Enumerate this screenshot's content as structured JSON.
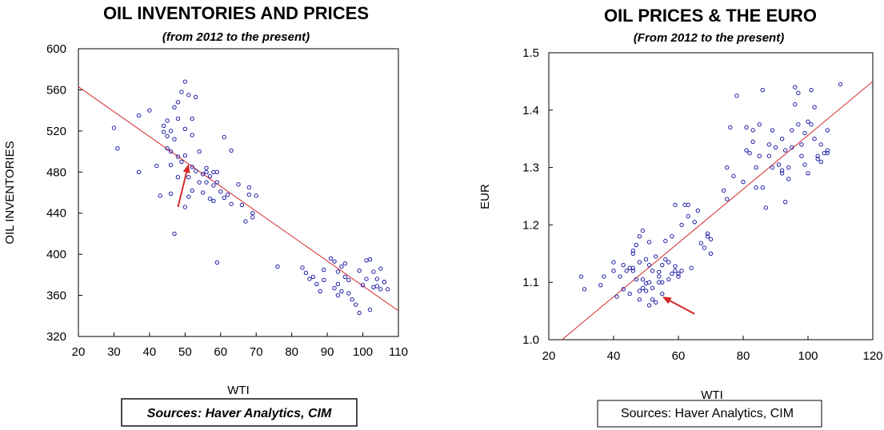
{
  "chart_data": [
    {
      "type": "scatter",
      "title": "OIL INVENTORIES AND PRICES",
      "subtitle": "(from 2012 to the present)",
      "xlabel": "WTI",
      "ylabel": "OIL INVENTORIES",
      "xlim": [
        20,
        110
      ],
      "ylim": [
        320,
        600
      ],
      "xticks": [
        20,
        30,
        40,
        50,
        60,
        70,
        80,
        90,
        100,
        110
      ],
      "yticks": [
        320,
        360,
        400,
        440,
        480,
        520,
        560,
        600
      ],
      "point_color": "#1f1fa8",
      "line_color": "#d42a2a",
      "arrow_color": "#d42a2a",
      "regression": {
        "x": [
          20,
          110
        ],
        "y": [
          563,
          345
        ]
      },
      "arrow": {
        "from": [
          48,
          446
        ],
        "to": [
          51,
          488
        ]
      },
      "grid": false,
      "source": "Sources:  Haver Analytics, CIM",
      "points": [
        [
          30,
          523
        ],
        [
          31,
          503
        ],
        [
          37,
          480
        ],
        [
          37,
          535
        ],
        [
          40,
          540
        ],
        [
          42,
          486
        ],
        [
          43,
          457
        ],
        [
          44,
          519
        ],
        [
          44,
          525
        ],
        [
          45,
          530
        ],
        [
          45,
          503
        ],
        [
          45,
          515
        ],
        [
          46,
          459
        ],
        [
          46,
          500
        ],
        [
          46,
          520
        ],
        [
          46,
          487
        ],
        [
          47,
          543
        ],
        [
          47,
          512
        ],
        [
          47,
          420
        ],
        [
          48,
          475
        ],
        [
          48,
          495
        ],
        [
          48,
          548
        ],
        [
          48,
          532
        ],
        [
          49,
          558
        ],
        [
          49,
          490
        ],
        [
          50,
          568
        ],
        [
          50,
          522
        ],
        [
          50,
          496
        ],
        [
          50,
          446
        ],
        [
          51,
          555
        ],
        [
          51,
          475
        ],
        [
          51,
          456
        ],
        [
          52,
          532
        ],
        [
          52,
          516
        ],
        [
          52,
          485
        ],
        [
          52,
          462
        ],
        [
          53,
          553
        ],
        [
          53,
          481
        ],
        [
          54,
          470
        ],
        [
          54,
          500
        ],
        [
          55,
          478
        ],
        [
          55,
          460
        ],
        [
          56,
          480
        ],
        [
          56,
          484
        ],
        [
          56,
          470
        ],
        [
          57,
          476
        ],
        [
          57,
          454
        ],
        [
          58,
          467
        ],
        [
          58,
          452
        ],
        [
          58,
          480
        ],
        [
          59,
          470
        ],
        [
          59,
          480
        ],
        [
          59,
          392
        ],
        [
          60,
          461
        ],
        [
          61,
          514
        ],
        [
          61,
          455
        ],
        [
          62,
          458
        ],
        [
          63,
          449
        ],
        [
          63,
          501
        ],
        [
          65,
          468
        ],
        [
          66,
          448
        ],
        [
          67,
          432
        ],
        [
          68,
          458
        ],
        [
          68,
          465
        ],
        [
          69,
          440
        ],
        [
          69,
          436
        ],
        [
          70,
          457
        ],
        [
          76,
          388
        ],
        [
          83,
          387
        ],
        [
          84,
          382
        ],
        [
          85,
          376
        ],
        [
          86,
          378
        ],
        [
          87,
          371
        ],
        [
          88,
          364
        ],
        [
          89,
          385
        ],
        [
          89,
          375
        ],
        [
          91,
          396
        ],
        [
          92,
          393
        ],
        [
          92,
          367
        ],
        [
          93,
          360
        ],
        [
          93,
          371
        ],
        [
          93,
          383
        ],
        [
          94,
          388
        ],
        [
          94,
          364
        ],
        [
          95,
          391
        ],
        [
          95,
          378
        ],
        [
          96,
          362
        ],
        [
          96,
          375
        ],
        [
          97,
          356
        ],
        [
          98,
          351
        ],
        [
          99,
          343
        ],
        [
          99,
          384
        ],
        [
          100,
          370
        ],
        [
          101,
          376
        ],
        [
          101,
          394
        ],
        [
          102,
          395
        ],
        [
          102,
          346
        ],
        [
          103,
          383
        ],
        [
          103,
          368
        ],
        [
          104,
          376
        ],
        [
          104,
          369
        ],
        [
          105,
          386
        ],
        [
          105,
          366
        ],
        [
          106,
          373
        ],
        [
          106,
          373
        ],
        [
          107,
          366
        ]
      ]
    },
    {
      "type": "scatter",
      "title": "OIL PRICES & THE EURO",
      "subtitle": "(From 2012 to the present)",
      "xlabel": "WTI",
      "ylabel": "EUR",
      "xlim": [
        20,
        120
      ],
      "ylim": [
        1.0,
        1.5
      ],
      "xticks": [
        20,
        40,
        60,
        80,
        100,
        120
      ],
      "yticks": [
        "1.0",
        "1.1",
        "1.2",
        "1.3",
        "1.4",
        "1.5"
      ],
      "point_color": "#1f1fa8",
      "line_color": "#d42a2a",
      "arrow_color": "#d42a2a",
      "regression": {
        "x": [
          23,
          120
        ],
        "y": [
          0.995,
          1.45
        ]
      },
      "arrow": {
        "from": [
          65,
          1.045
        ],
        "to": [
          55,
          1.075
        ]
      },
      "grid": false,
      "source": "Sources:  Haver Analytics, CIM",
      "points": [
        [
          30,
          1.11
        ],
        [
          31,
          1.088
        ],
        [
          36,
          1.095
        ],
        [
          37,
          1.11
        ],
        [
          40,
          1.12
        ],
        [
          40,
          1.135
        ],
        [
          41,
          1.075
        ],
        [
          42,
          1.11
        ],
        [
          43,
          1.13
        ],
        [
          43,
          1.088
        ],
        [
          44,
          1.12
        ],
        [
          45,
          1.125
        ],
        [
          45,
          1.08
        ],
        [
          46,
          1.12
        ],
        [
          46,
          1.15
        ],
        [
          46,
          1.125
        ],
        [
          46,
          1.155
        ],
        [
          47,
          1.165
        ],
        [
          47,
          1.105
        ],
        [
          48,
          1.085
        ],
        [
          48,
          1.135
        ],
        [
          48,
          1.18
        ],
        [
          48,
          1.07
        ],
        [
          49,
          1.105
        ],
        [
          49,
          1.09
        ],
        [
          49,
          1.19
        ],
        [
          50,
          1.14
        ],
        [
          50,
          1.098
        ],
        [
          50,
          1.085
        ],
        [
          51,
          1.13
        ],
        [
          51,
          1.17
        ],
        [
          51,
          1.1
        ],
        [
          51,
          1.06
        ],
        [
          52,
          1.07
        ],
        [
          52,
          1.09
        ],
        [
          52,
          1.12
        ],
        [
          53,
          1.145
        ],
        [
          53,
          1.065
        ],
        [
          54,
          1.11
        ],
        [
          54,
          1.1
        ],
        [
          54,
          1.118
        ],
        [
          55,
          1.13
        ],
        [
          55,
          1.08
        ],
        [
          55,
          1.1
        ],
        [
          56,
          1.14
        ],
        [
          56,
          1.172
        ],
        [
          57,
          1.105
        ],
        [
          57,
          1.135
        ],
        [
          58,
          1.18
        ],
        [
          58,
          1.115
        ],
        [
          59,
          1.128
        ],
        [
          59,
          1.12
        ],
        [
          59,
          1.235
        ],
        [
          60,
          1.11
        ],
        [
          60,
          1.115
        ],
        [
          61,
          1.2
        ],
        [
          61,
          1.12
        ],
        [
          62,
          1.235
        ],
        [
          63,
          1.235
        ],
        [
          63,
          1.215
        ],
        [
          64,
          1.125
        ],
        [
          65,
          1.205
        ],
        [
          66,
          1.225
        ],
        [
          67,
          1.168
        ],
        [
          68,
          1.16
        ],
        [
          69,
          1.18
        ],
        [
          69,
          1.185
        ],
        [
          70,
          1.15
        ],
        [
          70,
          1.175
        ],
        [
          74,
          1.26
        ],
        [
          75,
          1.3
        ],
        [
          75,
          1.245
        ],
        [
          76,
          1.37
        ],
        [
          77,
          1.285
        ],
        [
          78,
          1.425
        ],
        [
          80,
          1.275
        ],
        [
          81,
          1.37
        ],
        [
          81,
          1.33
        ],
        [
          82,
          1.325
        ],
        [
          83,
          1.345
        ],
        [
          83,
          1.365
        ],
        [
          84,
          1.265
        ],
        [
          84,
          1.3
        ],
        [
          85,
          1.375
        ],
        [
          85,
          1.32
        ],
        [
          86,
          1.435
        ],
        [
          86,
          1.265
        ],
        [
          87,
          1.23
        ],
        [
          88,
          1.32
        ],
        [
          88,
          1.34
        ],
        [
          89,
          1.365
        ],
        [
          89,
          1.3
        ],
        [
          90,
          1.335
        ],
        [
          91,
          1.305
        ],
        [
          92,
          1.29
        ],
        [
          92,
          1.35
        ],
        [
          92,
          1.295
        ],
        [
          93,
          1.24
        ],
        [
          93,
          1.33
        ],
        [
          94,
          1.28
        ],
        [
          94,
          1.3
        ],
        [
          95,
          1.335
        ],
        [
          95,
          1.365
        ],
        [
          96,
          1.44
        ],
        [
          96,
          1.41
        ],
        [
          97,
          1.375
        ],
        [
          97,
          1.43
        ],
        [
          98,
          1.32
        ],
        [
          98,
          1.34
        ],
        [
          99,
          1.305
        ],
        [
          99,
          1.36
        ],
        [
          100,
          1.38
        ],
        [
          100,
          1.29
        ],
        [
          101,
          1.435
        ],
        [
          101,
          1.375
        ],
        [
          102,
          1.35
        ],
        [
          102,
          1.405
        ],
        [
          103,
          1.315
        ],
        [
          103,
          1.32
        ],
        [
          104,
          1.31
        ],
        [
          104,
          1.34
        ],
        [
          105,
          1.325
        ],
        [
          106,
          1.33
        ],
        [
          106,
          1.325
        ],
        [
          106,
          1.365
        ],
        [
          110,
          1.445
        ]
      ]
    }
  ]
}
